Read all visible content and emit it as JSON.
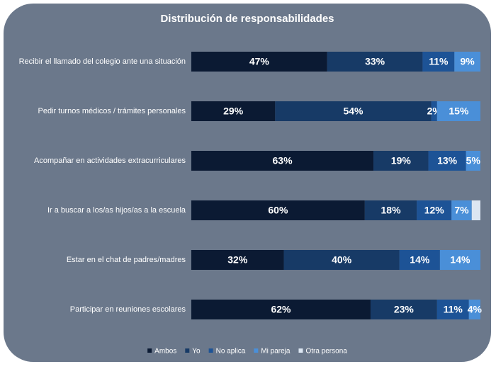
{
  "chart_data": {
    "type": "stacked-bar-horizontal",
    "title": "Distribución de responsabilidades",
    "categories": [
      "Recibir el llamado del colegio ante una situación",
      "Pedir turnos médicos / trámites personales",
      "Acompañar en actividades extracurriculares",
      "Ir a buscar a los/as hijos/as a la escuela",
      "Estar en el chat de padres/madres",
      "Participar en reuniones escolares"
    ],
    "series": [
      {
        "name": "Ambos",
        "color": "#0b1a33",
        "values": [
          47,
          29,
          63,
          60,
          32,
          62
        ],
        "value_labels": [
          "47%",
          "29%",
          "63%",
          "60%",
          "32%",
          "62%"
        ]
      },
      {
        "name": "Yo",
        "color": "#173a66",
        "values": [
          33,
          54,
          19,
          18,
          40,
          23
        ],
        "value_labels": [
          "33%",
          "54%",
          "19%",
          "18%",
          "40%",
          "23%"
        ]
      },
      {
        "name": "No aplica",
        "color": "#1d5396",
        "values": [
          11,
          2,
          13,
          12,
          14,
          11
        ],
        "value_labels": [
          "11%",
          "2%",
          "13%",
          "12%",
          "14%",
          "11%"
        ]
      },
      {
        "name": "Mi pareja",
        "color": "#4a8fd8",
        "values": [
          9,
          15,
          5,
          7,
          14,
          4
        ],
        "value_labels": [
          "9%",
          "15%",
          "5%",
          "7%",
          "14%",
          "4%"
        ]
      },
      {
        "name": "Otra persona",
        "color": "#dce6f2",
        "values": [
          0,
          0,
          0,
          3,
          0,
          0
        ]
      }
    ],
    "legend": "bottom"
  }
}
